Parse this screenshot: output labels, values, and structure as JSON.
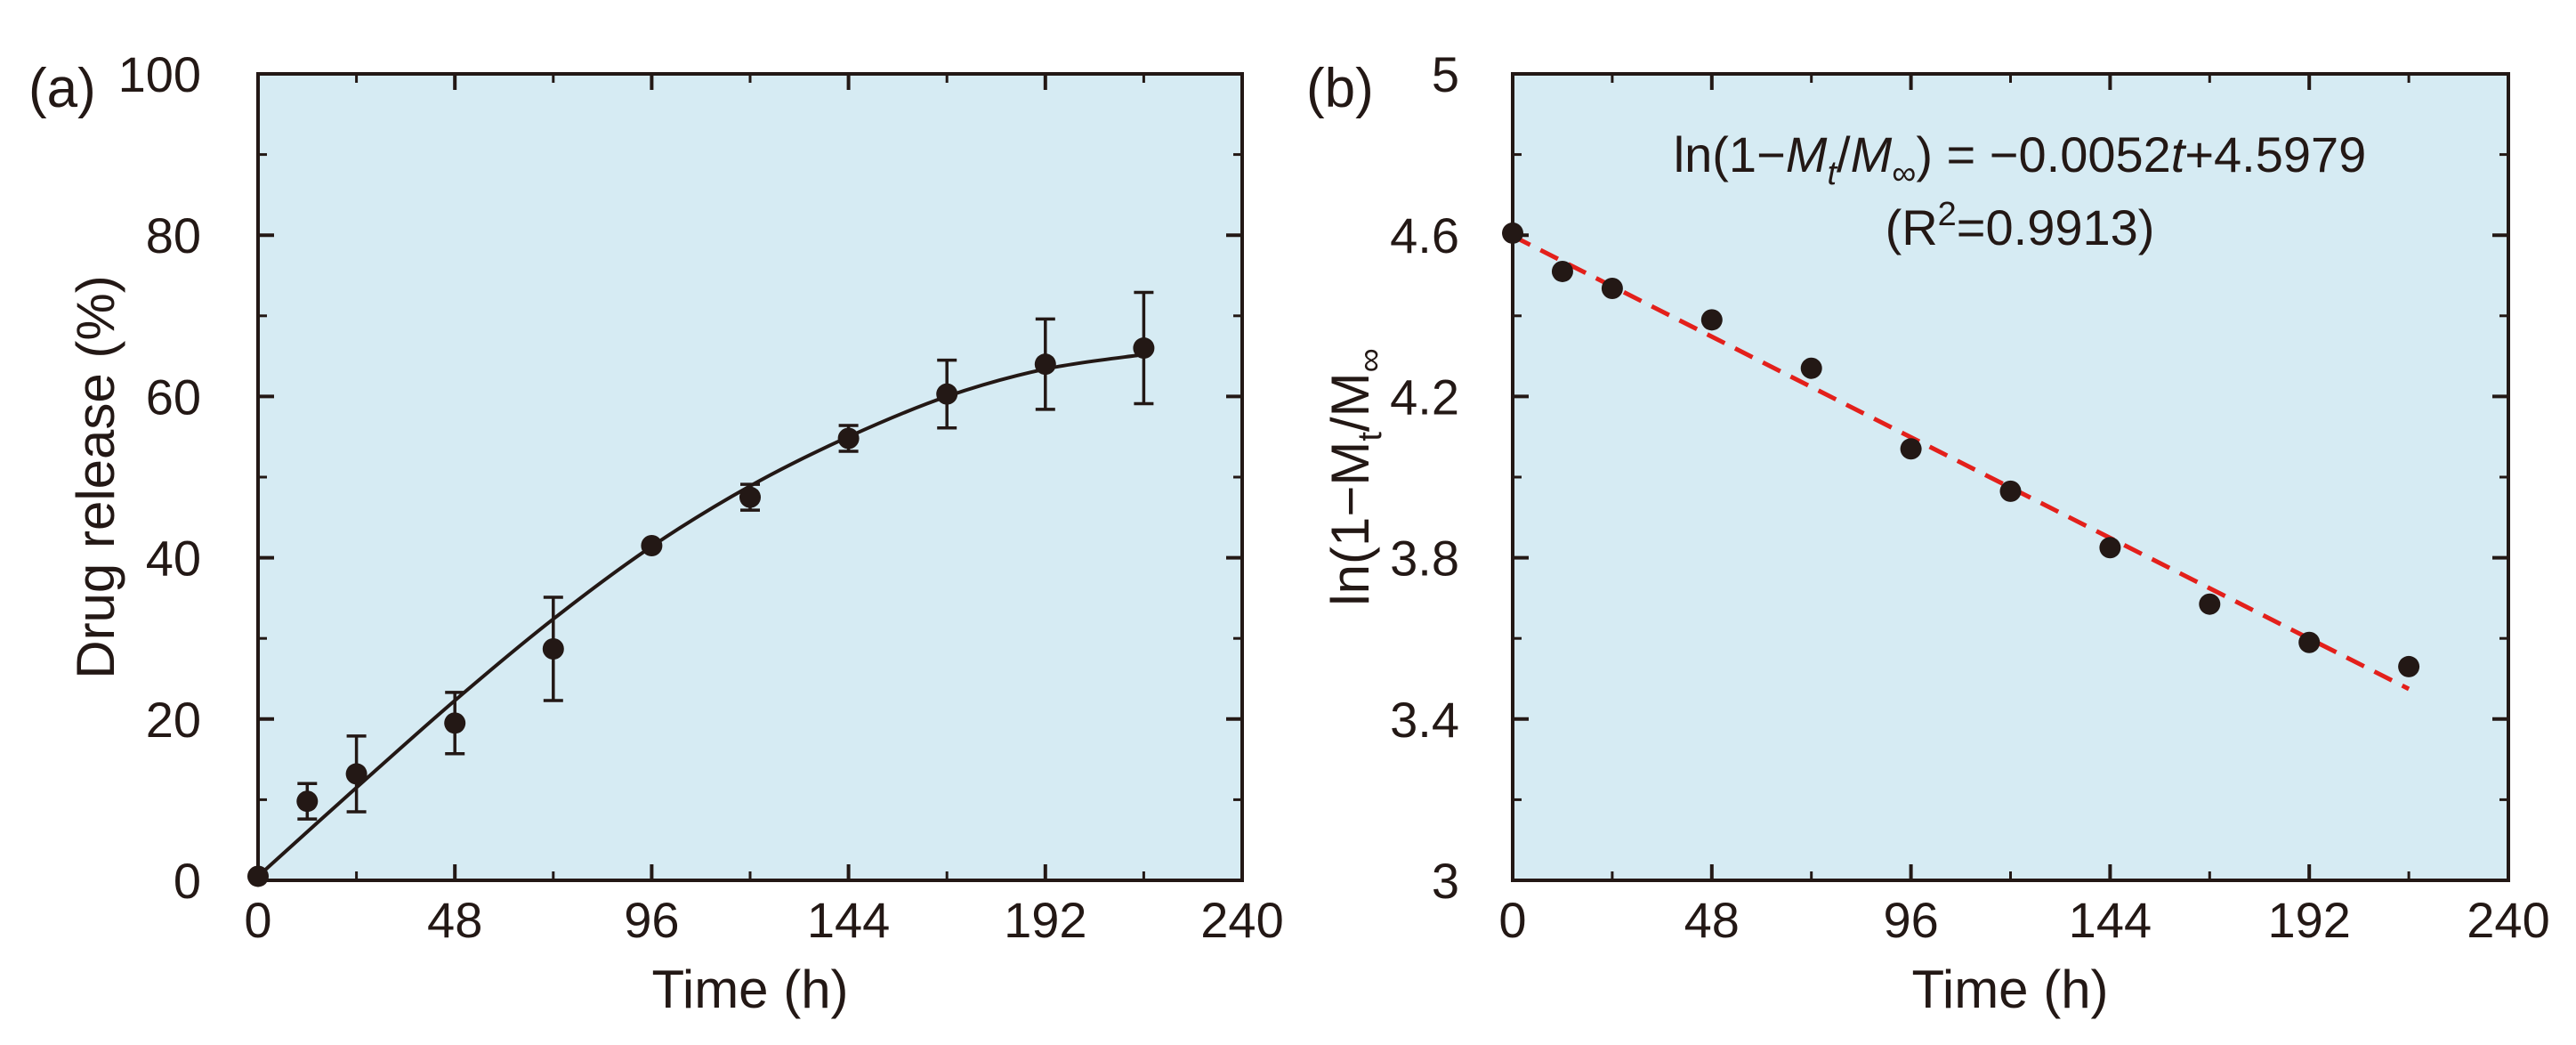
{
  "colors": {
    "plot_bg": "#d6ebf3",
    "ink": "#231815",
    "fit_line_b": "#e3201b"
  },
  "chart_data": [
    {
      "type": "scatter",
      "panel_label": "(a)",
      "xlabel": "Time (h)",
      "ylabel": "Drug release (%)",
      "xlim": [
        0,
        240
      ],
      "ylim": [
        0,
        100
      ],
      "x_ticks": [
        0,
        48,
        96,
        144,
        192,
        240
      ],
      "y_ticks": [
        0,
        20,
        40,
        60,
        80,
        100
      ],
      "series": [
        {
          "name": "Drug release",
          "x": [
            0,
            12,
            24,
            48,
            72,
            96,
            120,
            144,
            168,
            192,
            216
          ],
          "y": [
            0.5,
            9.8,
            13.2,
            19.5,
            28.7,
            41.5,
            47.5,
            54.8,
            60.3,
            64.0,
            66.0
          ],
          "error": [
            0,
            2.2,
            4.7,
            3.8,
            6.4,
            0,
            1.6,
            1.6,
            4.2,
            5.6,
            6.9
          ]
        }
      ],
      "fit_curve": {
        "style": "solid",
        "x": [
          0,
          24,
          48,
          72,
          96,
          120,
          144,
          168,
          192,
          216
        ],
        "y": [
          0.5,
          11.5,
          22.3,
          32.4,
          41.4,
          48.9,
          55.0,
          60.0,
          63.4,
          65.2
        ]
      }
    },
    {
      "type": "scatter",
      "panel_label": "(b)",
      "xlabel": "Time (h)",
      "ylabel": "ln(1−M",
      "ylabel_sub_t": "t",
      "ylabel_mid": "/M",
      "ylabel_sub_inf": "∞",
      "xlim": [
        0,
        240
      ],
      "ylim": [
        3,
        5
      ],
      "x_ticks": [
        0,
        48,
        96,
        144,
        192,
        240
      ],
      "y_ticks": [
        3,
        3.4,
        3.8,
        4.2,
        4.6,
        5
      ],
      "y_tick_labels": [
        "3",
        "3.4",
        "3.8",
        "4.2",
        "4.6",
        "5"
      ],
      "series": [
        {
          "name": "ln(1−Mt/M∞)",
          "x": [
            0,
            12,
            24,
            48,
            72,
            96,
            120,
            144,
            168,
            192,
            216
          ],
          "y": [
            4.605,
            4.51,
            4.468,
            4.39,
            4.27,
            4.07,
            3.965,
            3.825,
            3.685,
            3.59,
            3.53
          ]
        }
      ],
      "fit_line": {
        "style": "dashed",
        "slope": -0.0052,
        "intercept": 4.5979,
        "x_range": [
          0,
          216
        ]
      },
      "annotation": {
        "eq_prefix": "ln(1−",
        "eq_M": "M",
        "eq_sub_t": "t",
        "eq_slash": "/",
        "eq_Minf": "M",
        "eq_sub_inf": "∞",
        "eq_mid": ") = −0.0052",
        "eq_t": "t",
        "eq_end": "+4.5979",
        "r2_prefix": "(R",
        "r2_sup": "2",
        "r2_value": "=0.9913)"
      }
    }
  ]
}
